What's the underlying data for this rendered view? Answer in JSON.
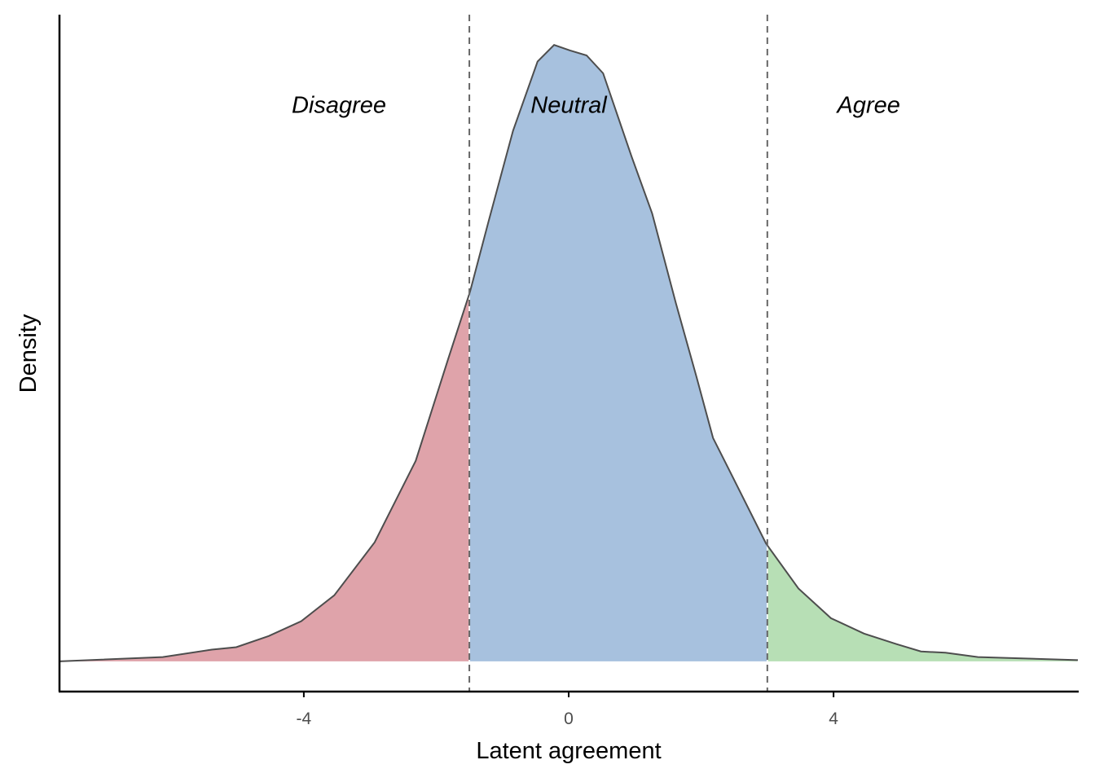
{
  "chart_data": {
    "type": "area",
    "title": "",
    "xlabel": "Latent agreement",
    "ylabel": "Density",
    "xlim": [
      -7.69,
      7.69
    ],
    "ylim": [
      -0.048,
      1.049
    ],
    "y_units": "relative density (peak = 1)",
    "x_ticks": [
      -4,
      0,
      4
    ],
    "x_tick_labels": [
      "-4",
      "0",
      "4"
    ],
    "y_ticks_shown": false,
    "grid": false,
    "thresholds": [
      -1.5,
      3.0
    ],
    "regions": [
      {
        "label": "Disagree",
        "from": -7.69,
        "to": -1.5,
        "color": "#dfa3aa",
        "label_x": -3.47,
        "label_y": 0.89
      },
      {
        "label": "Neutral",
        "from": -1.5,
        "to": 3.0,
        "color": "#a7c1de",
        "label_x": 0.0,
        "label_y": 0.89
      },
      {
        "label": "Agree",
        "from": 3.0,
        "to": 7.69,
        "color": "#b7dfb5",
        "label_x": 4.53,
        "label_y": 0.89
      }
    ],
    "curve_color": "#4d4d4d",
    "threshold_line_color": "#666666",
    "x": [
      -7.69,
      -6.13,
      -5.39,
      -5.02,
      -4.53,
      -4.04,
      -3.54,
      -2.93,
      -2.31,
      -1.82,
      -1.49,
      -1.21,
      -0.84,
      -0.47,
      -0.22,
      0.02,
      0.27,
      0.52,
      0.95,
      1.26,
      1.62,
      1.93,
      2.18,
      2.49,
      2.98,
      3.47,
      3.96,
      4.46,
      4.95,
      5.32,
      5.69,
      6.18,
      7.69
    ],
    "y": [
      0.001,
      0.008,
      0.02,
      0.024,
      0.042,
      0.066,
      0.108,
      0.194,
      0.326,
      0.491,
      0.6,
      0.714,
      0.861,
      0.973,
      1.0,
      0.991,
      0.983,
      0.954,
      0.819,
      0.727,
      0.581,
      0.462,
      0.363,
      0.297,
      0.192,
      0.119,
      0.071,
      0.046,
      0.029,
      0.017,
      0.015,
      0.008,
      0.003
    ]
  }
}
